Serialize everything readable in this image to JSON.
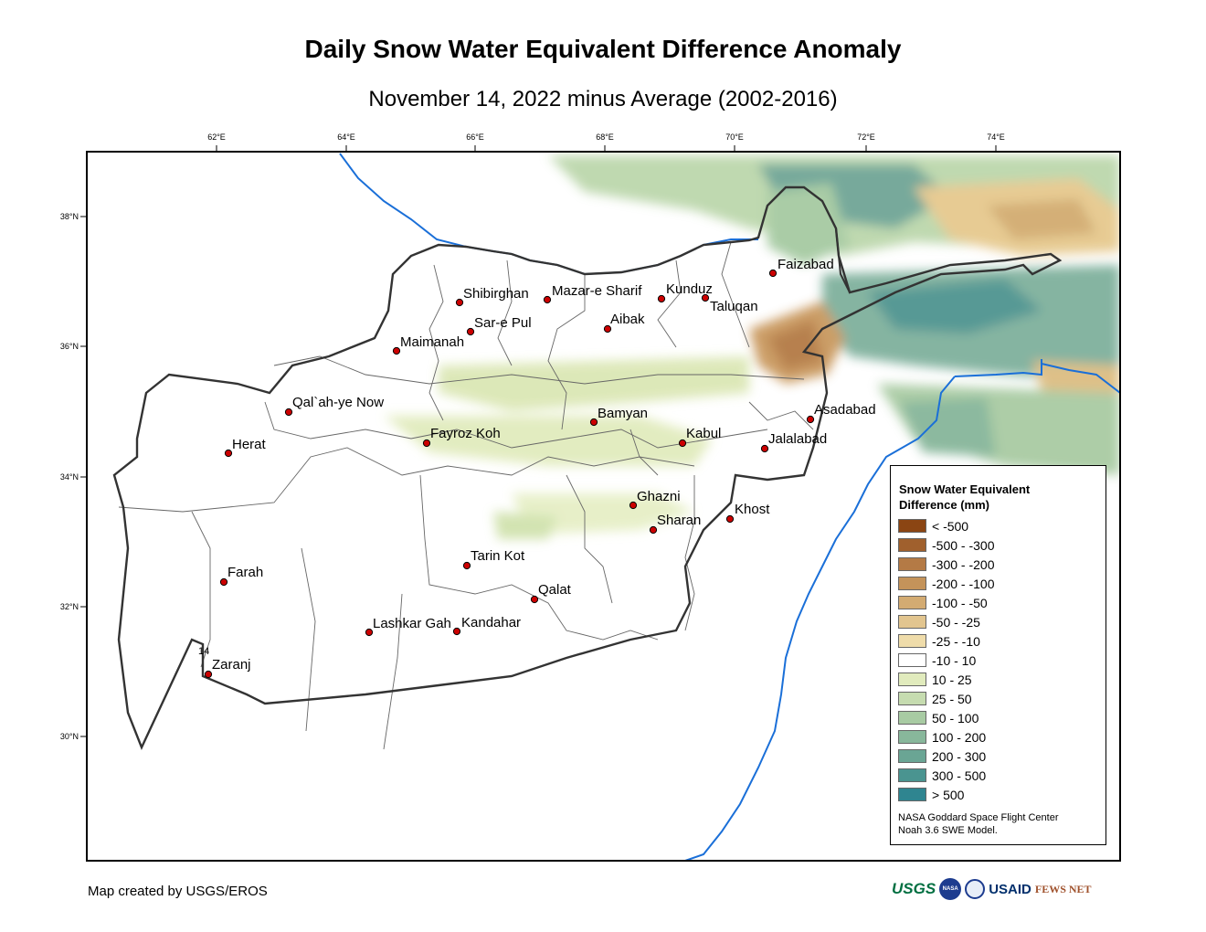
{
  "title": "Daily Snow Water Equivalent Difference Anomaly",
  "subtitle": "November 14, 2022 minus Average (2002-2016)",
  "top_ticks": [
    "62°E",
    "64°E",
    "66°E",
    "68°E",
    "70°E",
    "72°E",
    "74°E"
  ],
  "left_ticks": [
    "38°N",
    "36°N",
    "34°N",
    "32°N",
    "30°N"
  ],
  "cities": [
    {
      "name": "Faizabad"
    },
    {
      "name": "Shibirghan"
    },
    {
      "name": "Mazar-e Sharif"
    },
    {
      "name": "Kunduz"
    },
    {
      "name": "Taluqan"
    },
    {
      "name": "Sar-e Pul"
    },
    {
      "name": "Aibak"
    },
    {
      "name": "Maimanah"
    },
    {
      "name": "Qal`ah-ye Now"
    },
    {
      "name": "Asadabad"
    },
    {
      "name": "Bamyan"
    },
    {
      "name": "Herat"
    },
    {
      "name": "Fayroz Koh"
    },
    {
      "name": "Kabul"
    },
    {
      "name": "Jalalabad"
    },
    {
      "name": "Ghazni"
    },
    {
      "name": "Khost"
    },
    {
      "name": "Sharan"
    },
    {
      "name": "Farah"
    },
    {
      "name": "Tarin Kot"
    },
    {
      "name": "Qalat"
    },
    {
      "name": "Lashkar Gah"
    },
    {
      "name": "Kandahar"
    },
    {
      "name": "Zaranj"
    }
  ],
  "marker_label": "14",
  "legend": {
    "title_line1": "Snow Water Equivalent",
    "title_line2": "Difference (mm)",
    "items": [
      {
        "label": "< -500",
        "color": "#8b4513"
      },
      {
        "label": "-500 - -300",
        "color": "#a0602d"
      },
      {
        "label": "-300 - -200",
        "color": "#b47a45"
      },
      {
        "label": "-200 - -100",
        "color": "#c4935a"
      },
      {
        "label": "-100 - -50",
        "color": "#d3ab72"
      },
      {
        "label": "-50 - -25",
        "color": "#e2c58f"
      },
      {
        "label": "-25 - -10",
        "color": "#efdcaa"
      },
      {
        "label": "-10 - 10",
        "color": "#ffffff"
      },
      {
        "label": "10 - 25",
        "color": "#e1ebbd"
      },
      {
        "label": "25 - 50",
        "color": "#c6dcb0"
      },
      {
        "label": "50 - 100",
        "color": "#a8cba3"
      },
      {
        "label": "100 - 200",
        "color": "#88b79b"
      },
      {
        "label": "200 - 300",
        "color": "#6aa594"
      },
      {
        "label": "300 - 500",
        "color": "#4a9490"
      },
      {
        "label": "> 500",
        "color": "#2f8590"
      }
    ],
    "credit_line1": "NASA Goddard Space Flight Center",
    "credit_line2": "Noah 3.6 SWE Model."
  },
  "credit": "Map created by USGS/EROS",
  "logos": {
    "usgs": "USGS",
    "nasa": "NASA",
    "usaid": "USAID",
    "fews": "FEWS NET"
  },
  "colors": {
    "border": "#333333",
    "river": "#1a6fd8",
    "city_dot": "#cc0000"
  }
}
